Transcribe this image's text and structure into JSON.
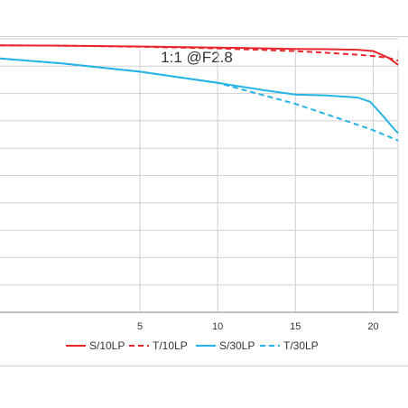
{
  "chart_data": {
    "type": "line",
    "title": "1:1  @F2.8",
    "xlim": [
      -4,
      21.6
    ],
    "ylim": [
      0,
      1
    ],
    "y_gridlines": [
      0.1,
      0.2,
      0.3,
      0.4,
      0.5,
      0.6,
      0.7,
      0.8,
      0.9,
      1.0
    ],
    "x_ticks": [
      5,
      10,
      15,
      20
    ],
    "grid": true,
    "legend_position": "bottom",
    "colors": {
      "red": "#e8262d",
      "blue": "#26b3e6",
      "grid": "#cfcfcf",
      "axis": "#9a9a9a",
      "text": "#333333"
    },
    "series": [
      {
        "name": "S/10LP",
        "color": "#e8262d",
        "dash": "solid",
        "x": [
          -4,
          0,
          5,
          10,
          15,
          17,
          19,
          20,
          21,
          21.6
        ],
        "y": [
          0.976,
          0.975,
          0.972,
          0.968,
          0.963,
          0.962,
          0.96,
          0.955,
          0.93,
          0.905
        ]
      },
      {
        "name": "T/10LP",
        "color": "#e8262d",
        "dash": "dashed",
        "x": [
          -4,
          0,
          5,
          10,
          15,
          17,
          19,
          20,
          21,
          21.6
        ],
        "y": [
          0.976,
          0.975,
          0.971,
          0.965,
          0.955,
          0.949,
          0.942,
          0.937,
          0.93,
          0.92
        ]
      },
      {
        "name": "S/30LP",
        "color": "#26b3e6",
        "dash": "solid",
        "x": [
          -4,
          0,
          5,
          10,
          13,
          15,
          17,
          19,
          19.8,
          20.6,
          21.2,
          21.6
        ],
        "y": [
          0.928,
          0.91,
          0.88,
          0.839,
          0.812,
          0.796,
          0.793,
          0.785,
          0.77,
          0.72,
          0.68,
          0.655
        ]
      },
      {
        "name": "T/30LP",
        "color": "#26b3e6",
        "dash": "dashed",
        "x": [
          -4,
          0,
          5,
          10,
          15,
          18,
          20,
          21.6
        ],
        "y": [
          0.928,
          0.91,
          0.88,
          0.839,
          0.762,
          0.705,
          0.666,
          0.628
        ]
      }
    ]
  }
}
